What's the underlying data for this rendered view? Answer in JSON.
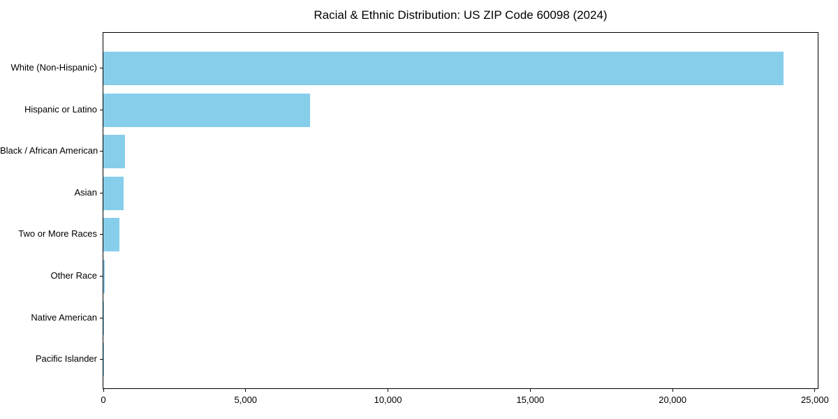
{
  "chart_data": {
    "type": "bar",
    "orientation": "horizontal",
    "title": "Racial & Ethnic Distribution: US ZIP Code 60098 (2024)",
    "categories": [
      "White (Non-Hispanic)",
      "Hispanic or Latino",
      "Black / African American",
      "Asian",
      "Two or More Races",
      "Other Race",
      "Native American",
      "Pacific Islander"
    ],
    "values": [
      23900,
      7250,
      760,
      710,
      565,
      40,
      25,
      10
    ],
    "xlabel": "",
    "ylabel": "",
    "xlim": [
      0,
      25100
    ],
    "xticks": [
      0,
      5000,
      10000,
      15000,
      20000,
      25000
    ],
    "xtick_labels": [
      "0",
      "5,000",
      "10,000",
      "15,000",
      "20,000",
      "25,000"
    ],
    "grid": false,
    "legend": null,
    "colors": {
      "bar": "#87CEEB",
      "spine": "#000000",
      "text": "#000000",
      "background": "#ffffff"
    }
  }
}
